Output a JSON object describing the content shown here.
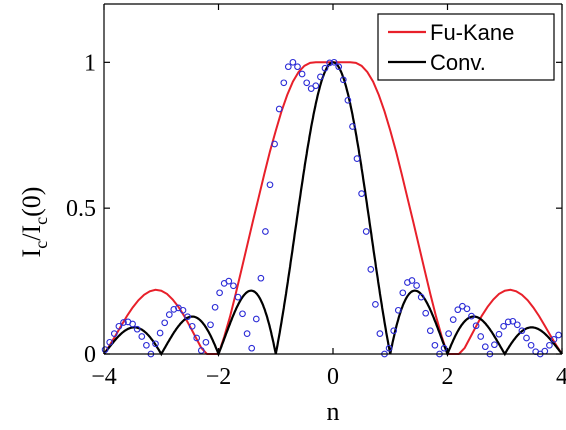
{
  "chart_data": {
    "type": "line",
    "xlabel": "n",
    "ylabel": "I",
    "ylabel_parts": {
      "main1": "I",
      "sub1": "c",
      "slash": "/I",
      "sub2": "c",
      "tail": "(0)"
    },
    "xlim": [
      -4,
      4
    ],
    "ylim": [
      0,
      1.2
    ],
    "xticks": [
      -4,
      -2,
      0,
      2,
      4
    ],
    "xtick_labels": [
      "−4",
      "−2",
      "0",
      "2",
      "4"
    ],
    "yticks": [
      0,
      0.5,
      1
    ],
    "ytick_labels": [
      "0",
      "0.5",
      "1"
    ],
    "grid": false,
    "legend_position": "top-right",
    "series": [
      {
        "name": "Fu-Kane",
        "color": "#e8202a",
        "style": "line",
        "x": [
          -4.0,
          -3.9,
          -3.8,
          -3.7,
          -3.6,
          -3.5,
          -3.4,
          -3.3,
          -3.2,
          -3.1,
          -3.0,
          -2.9,
          -2.8,
          -2.7,
          -2.6,
          -2.5,
          -2.4,
          -2.3,
          -2.2,
          -2.1,
          -2.0,
          -1.9,
          -1.8,
          -1.7,
          -1.6,
          -1.5,
          -1.4,
          -1.3,
          -1.2,
          -1.1,
          -1.0,
          -0.9,
          -0.8,
          -0.7,
          -0.6,
          -0.5,
          -0.4,
          -0.3,
          -0.2,
          -0.1,
          0.0,
          0.1,
          0.2,
          0.3,
          0.4,
          0.5,
          0.6,
          0.7,
          0.8,
          0.9,
          1.0,
          1.1,
          1.2,
          1.3,
          1.4,
          1.5,
          1.6,
          1.7,
          1.8,
          1.9,
          2.0,
          2.1,
          2.2,
          2.3,
          2.4,
          2.5,
          2.6,
          2.7,
          2.8,
          2.9,
          3.0,
          3.1,
          3.2,
          3.3,
          3.4,
          3.5,
          3.6,
          3.7,
          3.8,
          3.9,
          4.0
        ],
        "y": [
          0.0,
          0.03,
          0.063,
          0.097,
          0.13,
          0.159,
          0.184,
          0.203,
          0.215,
          0.22,
          0.217,
          0.206,
          0.187,
          0.162,
          0.131,
          0.095,
          0.058,
          0.021,
          0.0,
          0.0,
          0.0,
          0.059,
          0.128,
          0.206,
          0.288,
          0.371,
          0.454,
          0.536,
          0.617,
          0.695,
          0.766,
          0.832,
          0.888,
          0.934,
          0.967,
          0.988,
          0.998,
          1.0,
          1.0,
          1.0,
          1.0,
          1.0,
          1.0,
          1.0,
          0.998,
          0.988,
          0.967,
          0.934,
          0.888,
          0.832,
          0.766,
          0.695,
          0.617,
          0.536,
          0.454,
          0.371,
          0.288,
          0.206,
          0.128,
          0.059,
          0.0,
          0.0,
          0.0,
          0.021,
          0.058,
          0.095,
          0.131,
          0.162,
          0.187,
          0.206,
          0.217,
          0.22,
          0.215,
          0.203,
          0.184,
          0.159,
          0.13,
          0.097,
          0.063,
          0.03,
          0.0
        ]
      },
      {
        "name": "Conv.",
        "color": "#000000",
        "style": "line",
        "formula": "|sin(pi n)/(pi n)|"
      },
      {
        "name": "",
        "color": "#2b2bd6",
        "style": "markers",
        "marker": "circle",
        "x": [
          -3.98,
          -3.9,
          -3.82,
          -3.74,
          -3.66,
          -3.58,
          -3.5,
          -3.42,
          -3.34,
          -3.26,
          -3.18,
          -3.1,
          -3.02,
          -2.94,
          -2.86,
          -2.78,
          -2.7,
          -2.62,
          -2.54,
          -2.46,
          -2.38,
          -2.3,
          -2.22,
          -2.14,
          -2.06,
          -1.98,
          -1.9,
          -1.82,
          -1.74,
          -1.66,
          -1.58,
          -1.5,
          -1.42,
          -1.34,
          -1.26,
          -1.18,
          -1.1,
          -1.02,
          -0.94,
          -0.86,
          -0.78,
          -0.7,
          -0.62,
          -0.54,
          -0.46,
          -0.38,
          -0.3,
          -0.22,
          -0.14,
          -0.06,
          0.02,
          0.1,
          0.18,
          0.26,
          0.34,
          0.42,
          0.5,
          0.58,
          0.66,
          0.74,
          0.82,
          0.9,
          0.98,
          1.06,
          1.14,
          1.22,
          1.3,
          1.38,
          1.46,
          1.54,
          1.62,
          1.7,
          1.78,
          1.86,
          1.94,
          2.02,
          2.1,
          2.18,
          2.26,
          2.34,
          2.42,
          2.5,
          2.58,
          2.66,
          2.74,
          2.82,
          2.9,
          2.98,
          3.06,
          3.14,
          3.22,
          3.3,
          3.38,
          3.46,
          3.54,
          3.62,
          3.7,
          3.78,
          3.86,
          3.94
        ],
        "y": [
          0.015,
          0.04,
          0.07,
          0.095,
          0.108,
          0.11,
          0.103,
          0.085,
          0.06,
          0.03,
          0.0,
          0.035,
          0.072,
          0.107,
          0.135,
          0.153,
          0.158,
          0.15,
          0.128,
          0.095,
          0.055,
          0.012,
          0.04,
          0.1,
          0.16,
          0.21,
          0.242,
          0.25,
          0.234,
          0.195,
          0.138,
          0.07,
          0.02,
          0.12,
          0.26,
          0.42,
          0.58,
          0.72,
          0.84,
          0.93,
          0.985,
          1.0,
          0.985,
          0.96,
          0.93,
          0.91,
          0.92,
          0.95,
          0.98,
          0.998,
          1.0,
          0.985,
          0.94,
          0.87,
          0.78,
          0.67,
          0.55,
          0.42,
          0.29,
          0.17,
          0.07,
          0.0,
          0.02,
          0.08,
          0.15,
          0.21,
          0.245,
          0.252,
          0.235,
          0.195,
          0.14,
          0.08,
          0.03,
          0.0,
          0.02,
          0.07,
          0.118,
          0.152,
          0.164,
          0.155,
          0.13,
          0.097,
          0.06,
          0.025,
          0.0,
          0.032,
          0.068,
          0.095,
          0.11,
          0.112,
          0.1,
          0.08,
          0.055,
          0.03,
          0.008,
          0.0,
          0.01,
          0.03,
          0.05,
          0.065
        ]
      }
    ]
  }
}
